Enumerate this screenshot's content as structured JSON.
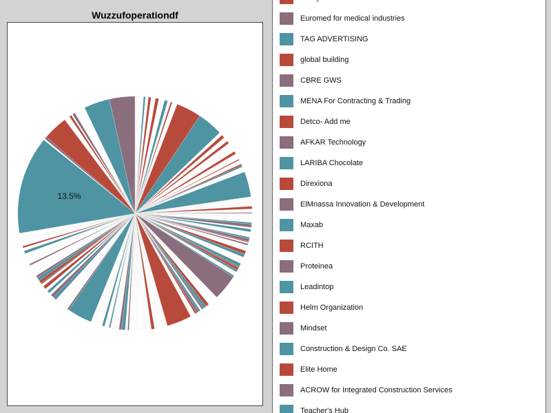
{
  "chart_data": {
    "type": "pie",
    "title": "Wuzzufoperationdf",
    "palette": [
      "#b84a3c",
      "#8a6e7d",
      "#4e94a3"
    ],
    "major_slice": {
      "value": 13.5,
      "label": "13.5%",
      "color": "#4e94a3"
    },
    "legend": [
      {
        "label": "Pretty House",
        "color": "#b84a3c"
      },
      {
        "label": "Euromed for medical industries",
        "color": "#8a6e7d"
      },
      {
        "label": "TAG ADVERTISING",
        "color": "#4e94a3"
      },
      {
        "label": "global building",
        "color": "#b84a3c"
      },
      {
        "label": "CBRE GWS",
        "color": "#8a6e7d"
      },
      {
        "label": "MENA For Contracting & Trading",
        "color": "#4e94a3"
      },
      {
        "label": "Detco- Add me",
        "color": "#b84a3c"
      },
      {
        "label": "AFKAR Technology",
        "color": "#8a6e7d"
      },
      {
        "label": "LARIBA Chocolate",
        "color": "#4e94a3"
      },
      {
        "label": "Direxiona",
        "color": "#b84a3c"
      },
      {
        "label": "ElMnassa Innovation & Development",
        "color": "#8a6e7d"
      },
      {
        "label": "Maxab",
        "color": "#4e94a3"
      },
      {
        "label": "RCITH",
        "color": "#b84a3c"
      },
      {
        "label": "Proteinea",
        "color": "#8a6e7d"
      },
      {
        "label": "Leadintop",
        "color": "#4e94a3"
      },
      {
        "label": "Helm Organization",
        "color": "#b84a3c"
      },
      {
        "label": "Mindset",
        "color": "#8a6e7d"
      },
      {
        "label": "Construction & Design Co. SAE",
        "color": "#4e94a3"
      },
      {
        "label": "Elite Home",
        "color": "#b84a3c"
      },
      {
        "label": "ACROW for Integrated Construction Services",
        "color": "#8a6e7d"
      },
      {
        "label": "Teacher's Hub",
        "color": "#4e94a3"
      }
    ]
  }
}
